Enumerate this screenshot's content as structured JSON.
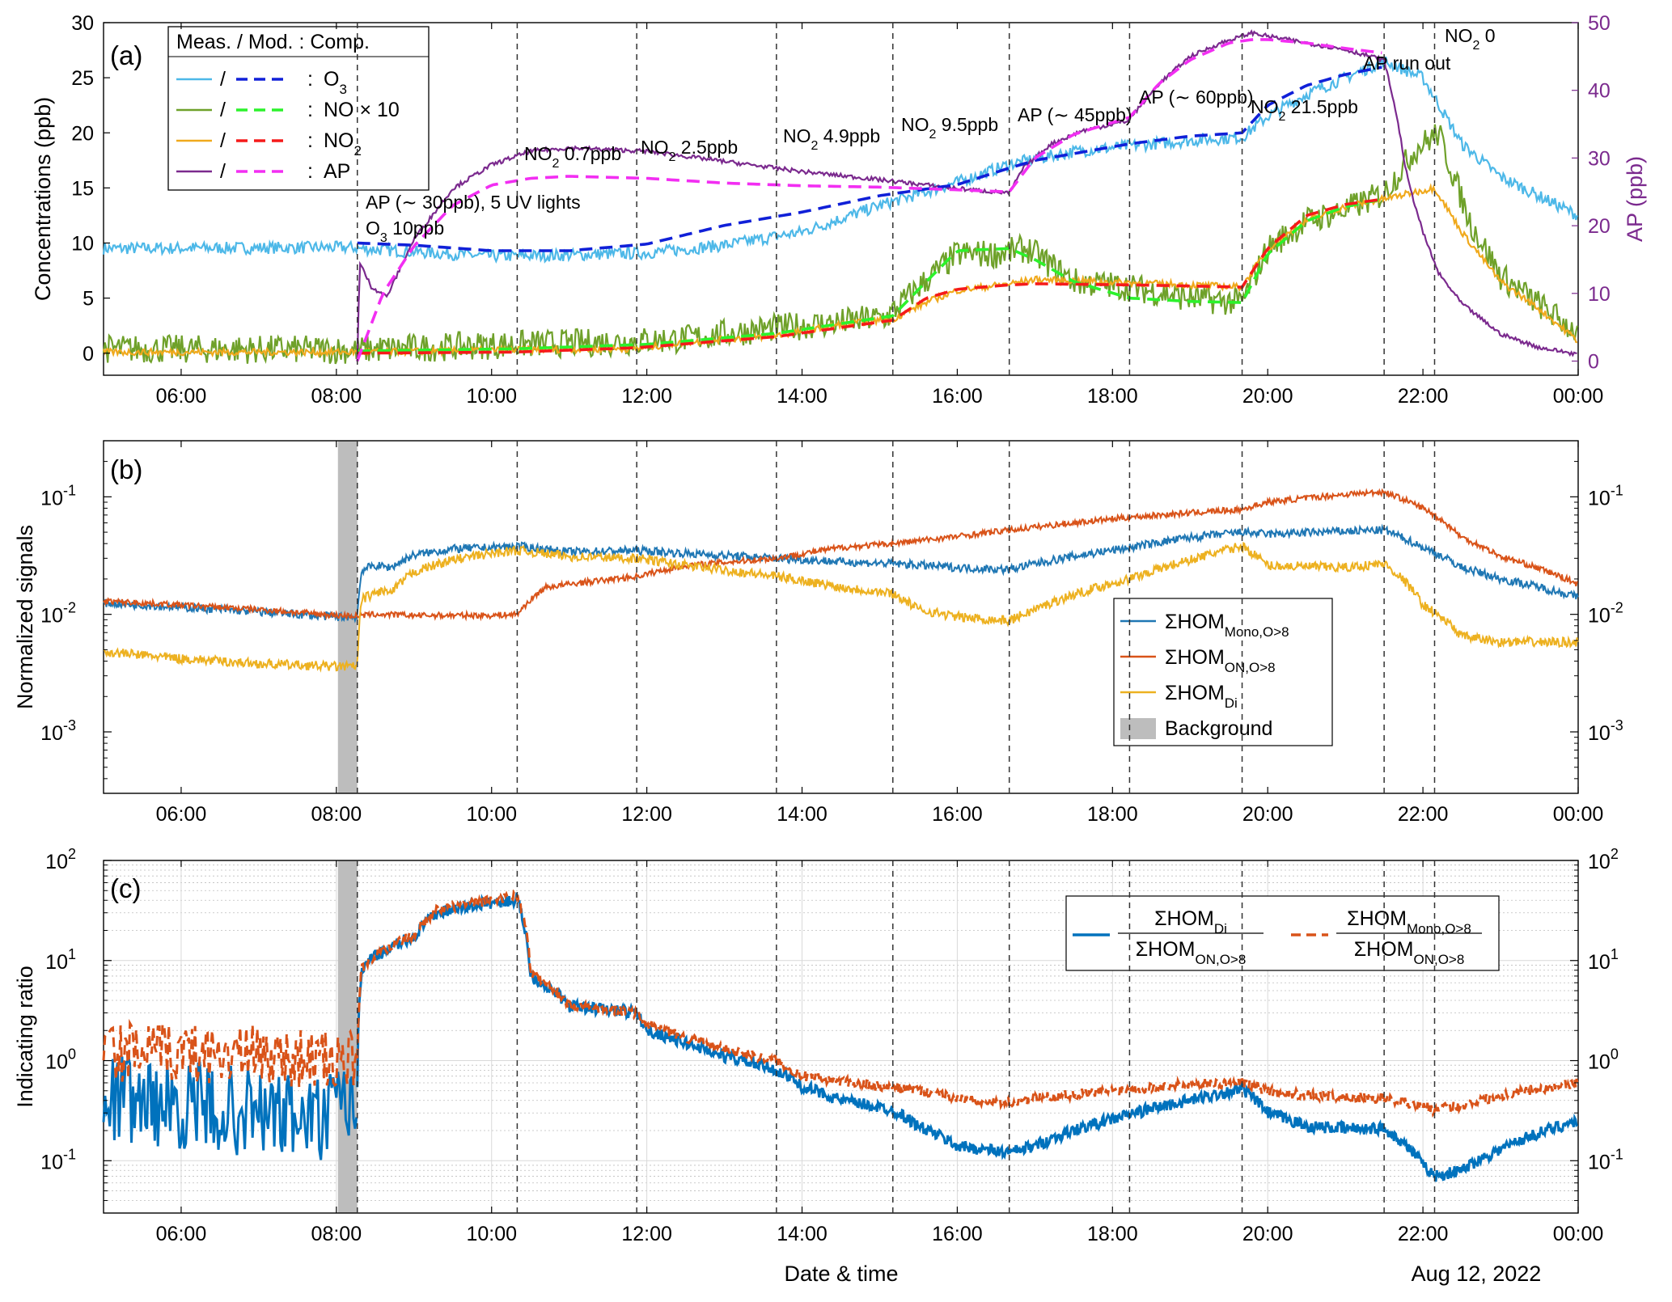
{
  "figure": {
    "xlabel": "Date & time",
    "date_label": "Aug 12, 2022",
    "time_ticks": [
      "06:00",
      "08:00",
      "10:00",
      "12:00",
      "14:00",
      "16:00",
      "18:00",
      "20:00",
      "22:00",
      "00:00"
    ],
    "event_times_h": [
      8.27,
      10.33,
      11.87,
      13.67,
      15.17,
      16.67,
      18.22,
      19.67,
      21.5,
      22.15
    ],
    "background_window_h": [
      8.02,
      8.27
    ]
  },
  "chart_data": [
    {
      "type": "line",
      "panel": "(a)",
      "ylabel": "Concentrations (ppb)",
      "y2label": "AP (ppb)",
      "ylim": [
        -2,
        30
      ],
      "y2lim": [
        0,
        50
      ],
      "yticks": [
        "0",
        "5",
        "10",
        "15",
        "20",
        "25",
        "30"
      ],
      "y2ticks": [
        "0",
        "10",
        "20",
        "30",
        "40",
        "50"
      ],
      "xlim_h": [
        5,
        24
      ],
      "colors": {
        "O3": "#4db8e8",
        "NOx10": "#6fa12a",
        "NO2": "#f0a91c",
        "AP": "#7b2a8e",
        "O3_mod": "#1020d8",
        "NOx10_mod": "#2cf22c",
        "NO2_mod": "#f51a1a",
        "AP_mod": "#f22ef2"
      },
      "legend": {
        "header": "Meas. / Mod. :  Comp.",
        "rows": [
          {
            "sep": "/",
            "colon": ":",
            "label": "O",
            "sub": "3",
            "tail": ""
          },
          {
            "sep": "/",
            "colon": ":",
            "label": "NO × 10",
            "sub": "",
            "tail": ""
          },
          {
            "sep": "/",
            "colon": ":",
            "label": "NO",
            "sub": "2",
            "tail": ""
          },
          {
            "sep": "/",
            "colon": ":",
            "label": "AP",
            "sub": "",
            "tail": ""
          }
        ]
      },
      "annotations": [
        {
          "a": "AP (∼ 30ppb), 5 UV lights",
          "b": ""
        },
        {
          "a": "O",
          "b": "3",
          "c": " 10ppb"
        },
        {
          "a": "NO",
          "b": "2",
          "c": " 0.7ppb"
        },
        {
          "a": "NO",
          "b": "2",
          "c": " 2.5ppb"
        },
        {
          "a": "NO",
          "b": "2",
          "c": " 4.9ppb"
        },
        {
          "a": "NO",
          "b": "2",
          "c": " 9.5ppb"
        },
        {
          "a": "AP (∼ 45ppb)",
          "b": "",
          "c": ""
        },
        {
          "a": "AP (∼ 60ppb)",
          "b": "",
          "c": ""
        },
        {
          "a": "NO",
          "b": "2",
          "c": " 21.5ppb"
        },
        {
          "a": "AP run out",
          "b": "",
          "c": ""
        },
        {
          "a": "NO",
          "b": "2",
          "c": " 0"
        }
      ],
      "series": [
        {
          "key": "O3",
          "x_h": [
            5.0,
            8.2,
            8.3,
            9.0,
            10.0,
            11.0,
            12.0,
            13.0,
            14.0,
            15.0,
            16.0,
            16.7,
            17.5,
            18.2,
            19.0,
            19.67,
            20.0,
            20.5,
            21.0,
            21.5,
            22.0,
            22.5,
            23.0,
            24.0
          ],
          "y": [
            9.5,
            9.6,
            9.5,
            9.2,
            8.8,
            8.9,
            9.1,
            9.8,
            11.0,
            13.4,
            15.5,
            17.2,
            18.3,
            18.8,
            19.3,
            19.6,
            21.5,
            23.5,
            25.0,
            26.5,
            25.0,
            19.0,
            16.0,
            12.5
          ],
          "noise": 0.55
        },
        {
          "key": "NOx10",
          "x_h": [
            5.0,
            8.27,
            10.3,
            11.5,
            12.5,
            13.5,
            14.5,
            15.1,
            15.5,
            16.0,
            16.5,
            16.9,
            17.5,
            18.2,
            19.0,
            19.67,
            20.0,
            20.5,
            21.0,
            21.5,
            21.9,
            22.2,
            22.6,
            23.0,
            24.0
          ],
          "y": [
            0.4,
            0.3,
            0.8,
            1.0,
            1.3,
            2.2,
            2.8,
            3.3,
            6.0,
            9.0,
            9.0,
            9.5,
            6.5,
            6.0,
            5.0,
            4.6,
            9.5,
            12.0,
            13.0,
            14.5,
            18.5,
            20.0,
            12.0,
            7.0,
            1.8
          ],
          "noise": 1.3
        },
        {
          "key": "NO2",
          "x_h": [
            5.0,
            8.27,
            10.3,
            11.87,
            12.5,
            13.67,
            14.5,
            15.17,
            15.6,
            16.0,
            16.67,
            17.0,
            18.22,
            19.0,
            19.67,
            20.0,
            20.5,
            21.0,
            21.5,
            22.15,
            22.5,
            23.0,
            23.5,
            24.0
          ],
          "y": [
            0.1,
            0.1,
            0.3,
            0.4,
            1.0,
            1.6,
            2.6,
            3.1,
            4.6,
            5.7,
            6.3,
            6.7,
            6.4,
            6.2,
            6.0,
            9.5,
            12.0,
            13.3,
            14.0,
            15.0,
            11.0,
            6.5,
            4.0,
            1.1
          ],
          "noise": 0.3
        },
        {
          "key": "AP",
          "axis": "y2",
          "x_h": [
            8.27,
            8.3,
            8.45,
            8.65,
            9.0,
            9.5,
            10.0,
            10.5,
            11.0,
            12.0,
            13.0,
            14.0,
            15.0,
            16.0,
            16.67,
            16.85,
            17.2,
            17.6,
            18.2,
            18.6,
            19.0,
            19.4,
            19.8,
            20.0,
            20.5,
            21.0,
            21.5,
            21.65,
            21.8,
            22.0,
            22.2,
            22.5,
            23.0,
            23.5,
            24.0
          ],
          "y": [
            0,
            14.5,
            11.0,
            9.5,
            18.0,
            25.5,
            29.0,
            31.0,
            31.5,
            31.0,
            29.5,
            28.0,
            26.8,
            25.5,
            24.8,
            28.5,
            32.0,
            34.0,
            35.5,
            41.0,
            45.0,
            47.0,
            48.5,
            48.0,
            47.0,
            46.0,
            44.5,
            37.0,
            27.0,
            19.0,
            13.0,
            8.5,
            4.0,
            2.0,
            1.0
          ],
          "noise": 0.3
        }
      ],
      "models": [
        {
          "key": "O3_mod",
          "x_h": [
            8.27,
            9.0,
            10.0,
            11.0,
            12.0,
            13.0,
            14.0,
            15.0,
            16.0,
            16.67,
            17.0,
            18.22,
            19.0,
            19.67,
            20.0,
            20.5,
            21.0,
            21.5
          ],
          "y": [
            10.0,
            9.8,
            9.3,
            9.3,
            9.9,
            11.6,
            12.8,
            14.3,
            15.3,
            16.8,
            17.5,
            19.0,
            19.7,
            20.0,
            22.5,
            24.3,
            25.3,
            26.0
          ]
        },
        {
          "key": "NOx10_mod",
          "x_h": [
            8.27,
            10.3,
            12.0,
            13.67,
            15.17,
            15.6,
            16.0,
            16.67,
            17.0,
            17.5,
            18.22,
            19.0,
            19.67,
            20.0,
            20.5,
            21.0,
            21.5
          ],
          "y": [
            0.2,
            0.4,
            0.8,
            1.8,
            3.4,
            6.5,
            9.3,
            9.5,
            8.5,
            6.5,
            5.0,
            4.7,
            4.6,
            9.0,
            12.0,
            13.3,
            14.0
          ]
        },
        {
          "key": "NO2_mod",
          "x_h": [
            8.27,
            10.3,
            11.87,
            13.67,
            15.17,
            15.6,
            16.0,
            16.67,
            17.0,
            18.22,
            19.0,
            19.67,
            20.0,
            20.5,
            21.0,
            21.5
          ],
          "y": [
            0.0,
            0.1,
            0.5,
            1.5,
            3.0,
            5.0,
            5.8,
            6.2,
            6.3,
            6.2,
            6.1,
            6.0,
            9.5,
            12.5,
            13.5,
            14.0
          ]
        },
        {
          "key": "AP_mod",
          "axis": "y2",
          "x_h": [
            8.27,
            8.6,
            9.0,
            9.5,
            10.0,
            10.5,
            11.0,
            12.0,
            13.0,
            14.0,
            15.0,
            16.0,
            16.67,
            17.0,
            17.5,
            18.22,
            18.6,
            19.0,
            19.5,
            19.8,
            20.0,
            20.5,
            21.0,
            21.5
          ],
          "y": [
            0,
            10.0,
            17.0,
            23.0,
            26.0,
            27.0,
            27.3,
            27.0,
            26.3,
            25.9,
            25.7,
            25.3,
            25.0,
            30.0,
            33.5,
            36.0,
            41.0,
            44.5,
            47.0,
            47.5,
            47.5,
            47.0,
            46.2,
            45.5
          ]
        }
      ]
    },
    {
      "type": "line",
      "panel": "(b)",
      "ylabel": "Normalized signals",
      "yscale": "log",
      "ylim": [
        0.0003,
        0.3
      ],
      "yticks": [
        {
          "base": "10",
          "exp": "-1"
        },
        {
          "base": "10",
          "exp": "-2"
        },
        {
          "base": "10",
          "exp": "-3"
        }
      ],
      "xlim_h": [
        5,
        24
      ],
      "legend": [
        {
          "main": "ΣHOM",
          "sub": "Mono,O>8",
          "color": "#1f77b4"
        },
        {
          "main": "ΣHOM",
          "sub": "ON,O>8",
          "color": "#d95319"
        },
        {
          "main": "ΣHOM",
          "sub": "Di",
          "color": "#edb120"
        },
        {
          "main": "Background",
          "sub": "",
          "color": "#bdbdbd"
        }
      ],
      "series": [
        {
          "name": "ΣHOM Mono,O>8",
          "color": "#1f77b4",
          "x_h": [
            5.0,
            6.0,
            7.0,
            8.0,
            8.27,
            8.33,
            8.5,
            8.7,
            9.0,
            9.5,
            10.0,
            10.33,
            11.0,
            11.87,
            12.5,
            13.67,
            14.5,
            15.17,
            16.0,
            16.67,
            17.0,
            18.22,
            19.0,
            19.67,
            20.0,
            21.0,
            21.5,
            22.0,
            22.5,
            23.0,
            24.0
          ],
          "y": [
            0.0125,
            0.0115,
            0.0105,
            0.0095,
            0.0095,
            0.024,
            0.026,
            0.025,
            0.032,
            0.036,
            0.037,
            0.038,
            0.034,
            0.035,
            0.033,
            0.03,
            0.028,
            0.027,
            0.025,
            0.024,
            0.027,
            0.037,
            0.045,
            0.05,
            0.048,
            0.051,
            0.052,
            0.037,
            0.025,
            0.02,
            0.014
          ],
          "noise": 0.035
        },
        {
          "name": "ΣHOM ON,O>8",
          "color": "#d95319",
          "x_h": [
            5.0,
            6.0,
            7.0,
            8.0,
            8.27,
            8.5,
            9.0,
            10.0,
            10.33,
            10.7,
            11.87,
            12.5,
            13.67,
            14.5,
            15.17,
            16.0,
            16.67,
            17.5,
            18.22,
            19.0,
            19.67,
            20.0,
            21.0,
            21.5,
            22.0,
            22.5,
            23.0,
            24.0
          ],
          "y": [
            0.013,
            0.012,
            0.011,
            0.0098,
            0.0097,
            0.01,
            0.0098,
            0.0098,
            0.01,
            0.017,
            0.021,
            0.026,
            0.03,
            0.037,
            0.04,
            0.046,
            0.052,
            0.06,
            0.067,
            0.073,
            0.078,
            0.09,
            0.105,
            0.11,
            0.08,
            0.045,
            0.031,
            0.018
          ],
          "noise": 0.025
        },
        {
          "name": "ΣHOM Di",
          "color": "#edb120",
          "x_h": [
            5.0,
            6.0,
            7.0,
            8.0,
            8.27,
            8.33,
            8.6,
            8.7,
            9.0,
            9.5,
            10.0,
            10.33,
            11.0,
            11.87,
            12.5,
            13.67,
            14.5,
            15.17,
            15.5,
            16.0,
            16.67,
            17.0,
            18.22,
            19.0,
            19.67,
            20.0,
            21.0,
            21.5,
            22.0,
            22.5,
            23.0,
            24.0
          ],
          "y": [
            0.0048,
            0.0042,
            0.0038,
            0.0036,
            0.0036,
            0.0135,
            0.016,
            0.015,
            0.023,
            0.029,
            0.033,
            0.035,
            0.031,
            0.03,
            0.026,
            0.021,
            0.017,
            0.015,
            0.011,
            0.0095,
            0.0088,
            0.011,
            0.02,
            0.029,
            0.038,
            0.026,
            0.025,
            0.027,
            0.012,
            0.0065,
            0.0058,
            0.0058
          ],
          "noise": 0.04
        }
      ]
    },
    {
      "type": "line",
      "panel": "(c)",
      "ylabel": "Indicating ratio",
      "yscale": "log",
      "ylim": [
        0.03,
        100
      ],
      "yticks": [
        {
          "base": "10",
          "exp": "2"
        },
        {
          "base": "10",
          "exp": "1"
        },
        {
          "base": "10",
          "exp": "0"
        },
        {
          "base": "10",
          "exp": "-1"
        }
      ],
      "xlim_h": [
        5,
        24
      ],
      "grid": true,
      "legend": [
        {
          "num_main": "ΣHOM",
          "num_sub": "Di",
          "den_main": "ΣHOM",
          "den_sub": "ON,O>8",
          "color": "#0072bd",
          "dash": false
        },
        {
          "num_main": "ΣHOM",
          "num_sub": "Mono,O>8",
          "den_main": "ΣHOM",
          "den_sub": "ON,O>8",
          "color": "#d95319",
          "dash": true
        }
      ],
      "series": [
        {
          "name": "ΣHOM Di / ΣHOM ON,O>8",
          "color": "#0072bd",
          "x_h": [
            8.27,
            8.33,
            8.5,
            9.0,
            9.3,
            10.0,
            10.33,
            10.5,
            11.0,
            11.87,
            12.0,
            12.5,
            13.0,
            13.67,
            14.0,
            14.5,
            15.17,
            15.5,
            16.0,
            16.67,
            17.0,
            18.0,
            19.0,
            19.67,
            20.0,
            20.5,
            21.0,
            21.5,
            22.0,
            22.15,
            22.5,
            23.0,
            24.0
          ],
          "y": [
            0.5,
            8.0,
            11.0,
            17.0,
            30.0,
            38.0,
            40.0,
            7.0,
            3.5,
            3.0,
            2.0,
            1.5,
            1.1,
            0.8,
            0.55,
            0.4,
            0.32,
            0.22,
            0.14,
            0.12,
            0.14,
            0.26,
            0.4,
            0.52,
            0.3,
            0.22,
            0.21,
            0.21,
            0.09,
            0.07,
            0.08,
            0.13,
            0.25
          ],
          "noise": 0.06
        },
        {
          "name": "ΣHOM Mono,O>8 / ΣHOM ON,O>8",
          "color": "#d95319",
          "dash": true,
          "x_h": [
            8.27,
            8.33,
            8.5,
            9.0,
            9.3,
            10.0,
            10.33,
            10.5,
            11.0,
            11.87,
            12.0,
            12.5,
            13.0,
            13.67,
            14.0,
            15.0,
            15.5,
            16.0,
            16.67,
            17.0,
            18.0,
            19.0,
            19.67,
            20.0,
            20.5,
            21.0,
            21.5,
            22.0,
            22.15,
            22.5,
            23.0,
            24.0
          ],
          "y": [
            1.0,
            8.5,
            11.0,
            18.0,
            32.0,
            40.0,
            45.0,
            7.5,
            3.6,
            3.0,
            2.3,
            1.7,
            1.3,
            1.0,
            0.7,
            0.55,
            0.5,
            0.42,
            0.38,
            0.42,
            0.5,
            0.58,
            0.6,
            0.5,
            0.45,
            0.43,
            0.42,
            0.35,
            0.32,
            0.36,
            0.45,
            0.6
          ],
          "noise": 0.05
        },
        {
          "name": "pre-experiment noise",
          "color": "#0072bd",
          "x_h": [
            5.0,
            6.0,
            7.0,
            7.8,
            8.27
          ],
          "y": [
            0.45,
            0.35,
            0.3,
            0.25,
            0.4
          ],
          "noise": 0.45,
          "early": true
        },
        {
          "name": "pre-experiment noise 2",
          "color": "#d95319",
          "dash": true,
          "x_h": [
            5.0,
            6.0,
            7.0,
            7.8,
            8.27
          ],
          "y": [
            1.2,
            1.2,
            1.15,
            1.0,
            1.0
          ],
          "noise": 0.3,
          "early": true
        }
      ]
    }
  ]
}
